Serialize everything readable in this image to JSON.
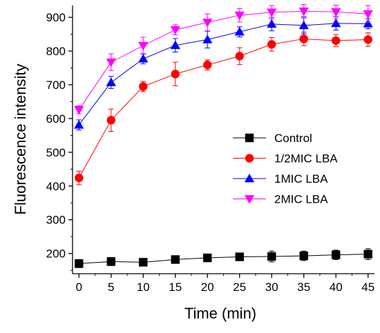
{
  "chart_data": {
    "type": "line",
    "xlabel": "Time (min)",
    "ylabel": "Fluorescence intensity",
    "xlim": [
      -1,
      46
    ],
    "ylim": [
      140,
      935
    ],
    "xticks": [
      0,
      5,
      10,
      15,
      20,
      25,
      30,
      35,
      40,
      45
    ],
    "yticks": [
      200,
      300,
      400,
      500,
      600,
      700,
      800,
      900
    ],
    "legend_position": "center-right",
    "grid": false,
    "x": [
      0,
      5,
      10,
      15,
      20,
      25,
      30,
      35,
      40,
      45
    ],
    "series": [
      {
        "name": "Control",
        "color": "#000000",
        "marker": "square",
        "values": [
          170,
          176,
          174,
          182,
          187,
          190,
          191,
          193,
          196,
          198
        ],
        "errors": [
          12,
          12,
          8,
          10,
          10,
          10,
          16,
          14,
          14,
          16
        ]
      },
      {
        "name": "1/2MIC LBA",
        "color": "#ff0000",
        "marker": "circle",
        "values": [
          424,
          595,
          695,
          732,
          759,
          785,
          820,
          836,
          831,
          834
        ],
        "errors": [
          20,
          33,
          15,
          35,
          15,
          25,
          20,
          20,
          18,
          20
        ]
      },
      {
        "name": "1MIC LBA",
        "color": "#0000ff",
        "marker": "triangle-up",
        "values": [
          581,
          707,
          777,
          817,
          834,
          857,
          880,
          876,
          882,
          881
        ],
        "errors": [
          15,
          18,
          15,
          20,
          25,
          15,
          20,
          25,
          20,
          15
        ]
      },
      {
        "name": "2MIC LBA",
        "color": "#ff00ff",
        "marker": "triangle-down",
        "values": [
          626,
          767,
          816,
          863,
          885,
          906,
          915,
          918,
          916,
          910
        ],
        "errors": [
          12,
          25,
          25,
          15,
          25,
          20,
          20,
          20,
          20,
          25
        ]
      }
    ]
  }
}
